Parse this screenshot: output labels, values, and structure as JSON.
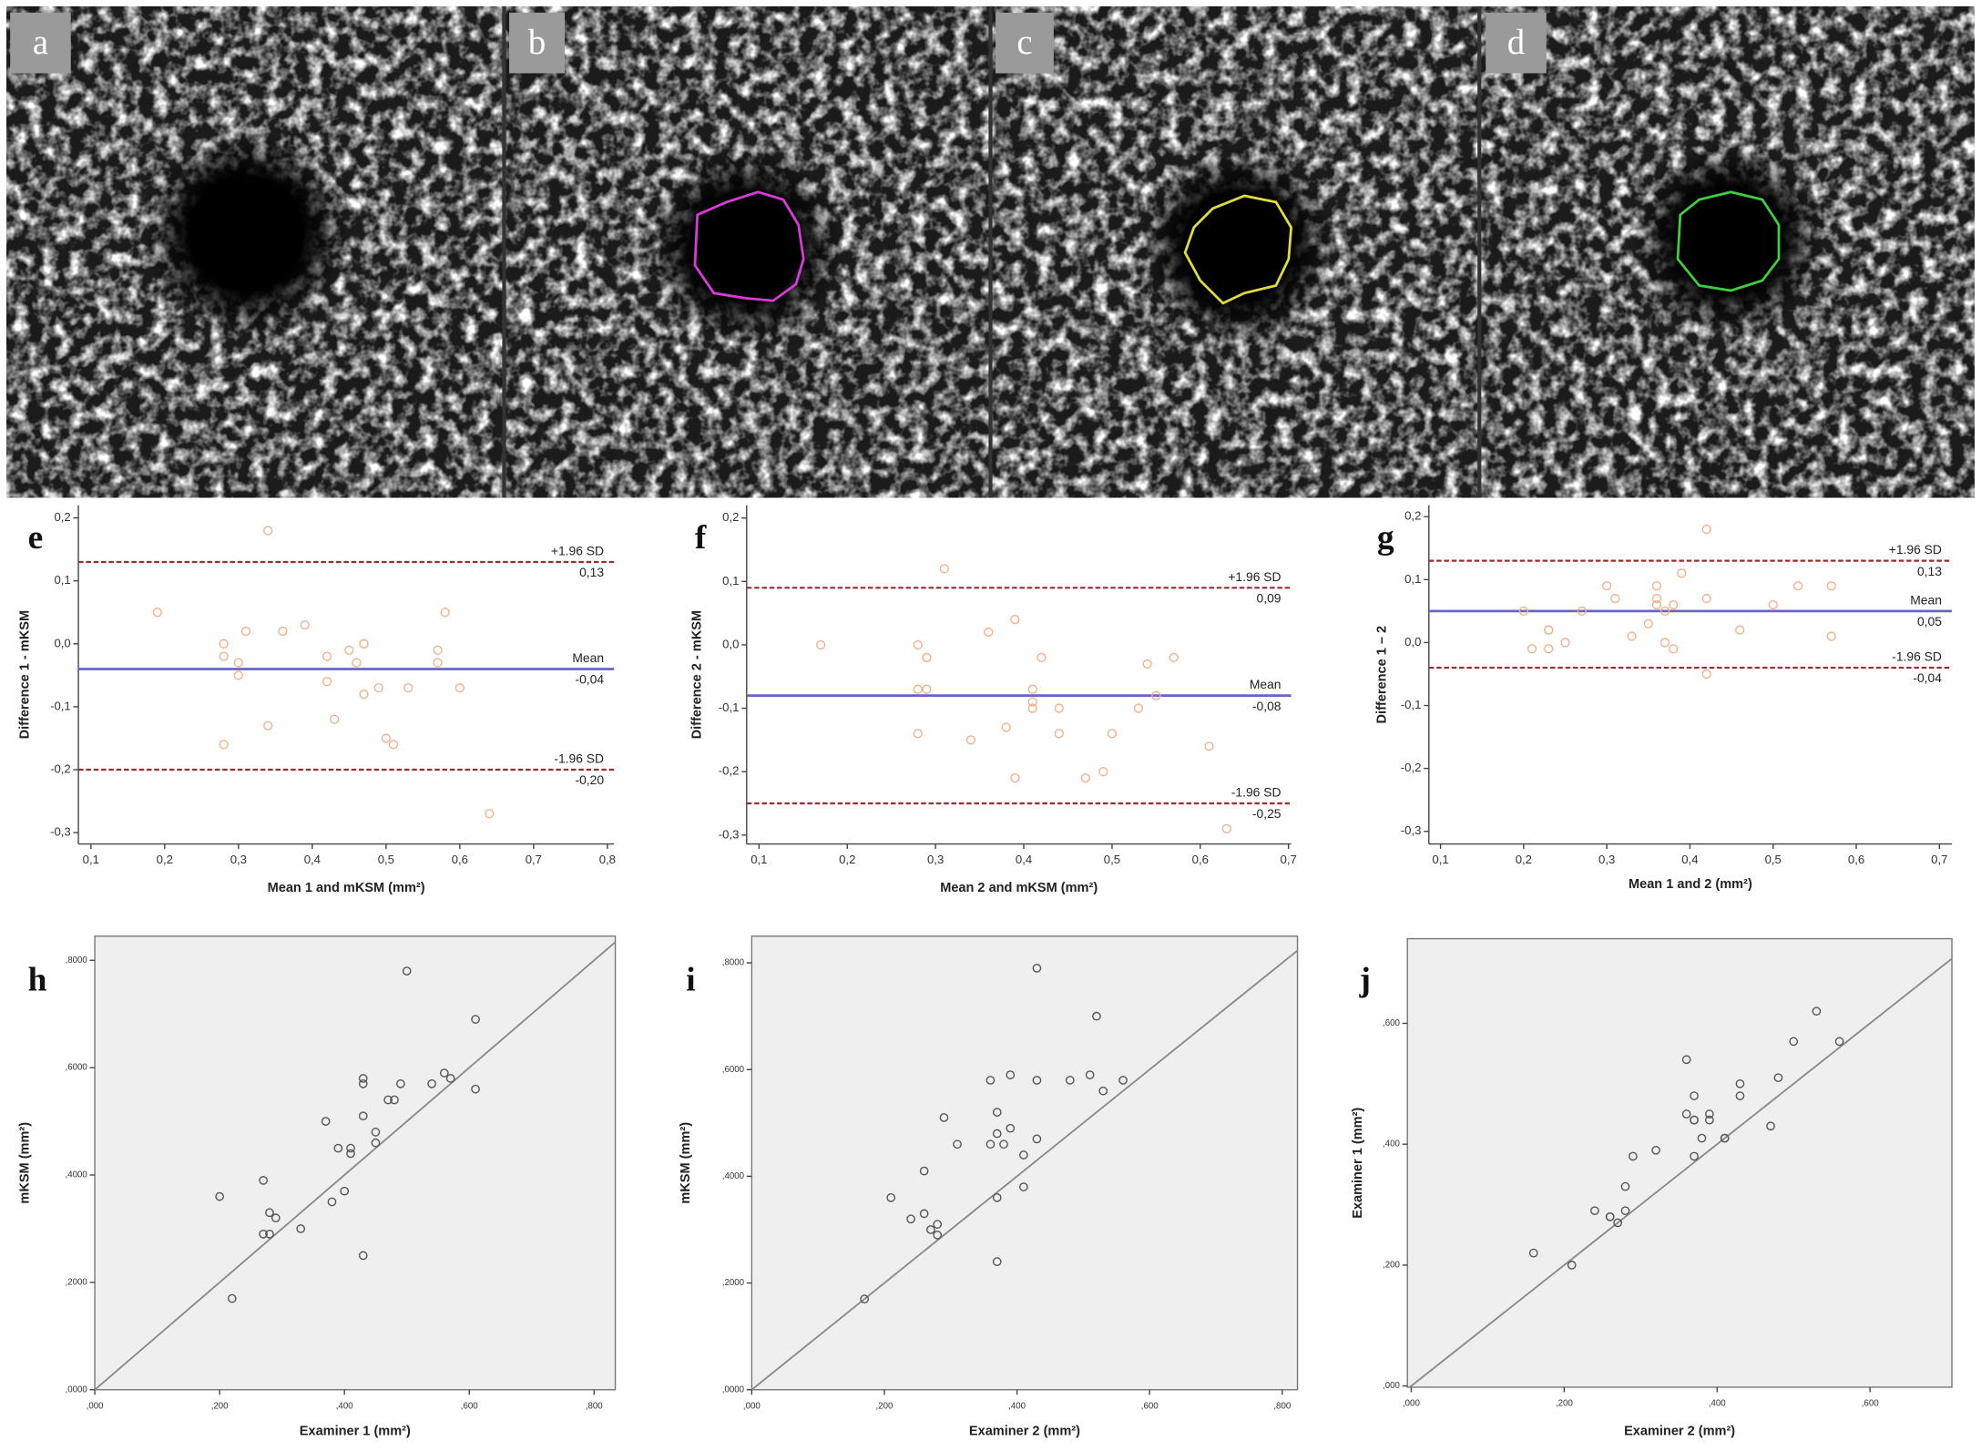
{
  "image_panels": [
    {
      "label": "a"
    },
    {
      "label": "b",
      "outline_color": "#d93ad9"
    },
    {
      "label": "c",
      "outline_color": "#e0dc3a"
    },
    {
      "label": "d",
      "outline_color": "#3fcf3a"
    }
  ],
  "chart_data": [
    {
      "type": "scatter",
      "label": "e",
      "x_label": "Mean 1 and mKSM (mm²)",
      "y_label": "Difference 1 - mKSM",
      "xlim": [
        0.083,
        0.809
      ],
      "ylim": [
        -0.318,
        0.22
      ],
      "xticks": [
        {
          "value": 0.1,
          "label": "0,1"
        },
        {
          "value": 0.2,
          "label": "0,2"
        },
        {
          "value": 0.3,
          "label": "0,3"
        },
        {
          "value": 0.4,
          "label": "0,4"
        },
        {
          "value": 0.5,
          "label": "0,5"
        },
        {
          "value": 0.6,
          "label": "0,6"
        },
        {
          "value": 0.7,
          "label": "0,7"
        },
        {
          "value": 0.8,
          "label": "0,8"
        }
      ],
      "yticks": [
        {
          "value": 0.2,
          "label": "0,2"
        },
        {
          "value": 0.1,
          "label": "0,1"
        },
        {
          "value": 0,
          "label": "0,0"
        },
        {
          "value": -0.1,
          "label": "-0,1"
        },
        {
          "value": -0.2,
          "label": "-0,2"
        },
        {
          "value": -0.3,
          "label": "-0,3"
        }
      ],
      "reference_lines": [
        {
          "name": "+1.96 SD",
          "value": 0.13,
          "value_label": "0,13",
          "color": "#9b2d2d",
          "style": "dashed"
        },
        {
          "name": "Mean",
          "value": -0.04,
          "value_label": "-0,04",
          "color": "#6a64c8",
          "style": "solid"
        },
        {
          "name": "-1.96 SD",
          "value": -0.2,
          "value_label": "-0,20",
          "color": "#9b2d2d",
          "style": "dashed"
        }
      ],
      "series": [
        {
          "color": "#f4b08a",
          "x": [
            0.19,
            0.34,
            0.28,
            0.28,
            0.3,
            0.3,
            0.31,
            0.28,
            0.34,
            0.36,
            0.39,
            0.42,
            0.42,
            0.45,
            0.43,
            0.46,
            0.47,
            0.47,
            0.47,
            0.49,
            0.5,
            0.51,
            0.53,
            0.57,
            0.57,
            0.58,
            0.6,
            0.64
          ],
          "values": [
            0.05,
            0.18,
            -0.02,
            0,
            -0.05,
            -0.03,
            0.02,
            -0.16,
            -0.13,
            0.02,
            0.03,
            -0.06,
            -0.02,
            -0.01,
            -0.12,
            -0.03,
            0,
            0,
            -0.08,
            -0.07,
            -0.15,
            -0.16,
            -0.07,
            -0.03,
            -0.01,
            0.05,
            -0.07,
            -0.27
          ]
        }
      ]
    },
    {
      "type": "scatter",
      "label": "f",
      "x_label": "Mean 2 and mKSM (mm²)",
      "y_label": "Difference 2 - mKSM",
      "xlim": [
        0.086,
        0.703
      ],
      "ylim": [
        -0.314,
        0.22
      ],
      "xticks": [
        {
          "value": 0.1,
          "label": "0,1"
        },
        {
          "value": 0.2,
          "label": "0,2"
        },
        {
          "value": 0.3,
          "label": "0,3"
        },
        {
          "value": 0.4,
          "label": "0,4"
        },
        {
          "value": 0.5,
          "label": "0,5"
        },
        {
          "value": 0.6,
          "label": "0,6"
        },
        {
          "value": 0.7,
          "label": "0,7"
        }
      ],
      "yticks": [
        {
          "value": 0.2,
          "label": "0,2"
        },
        {
          "value": 0.1,
          "label": "0,1"
        },
        {
          "value": 0,
          "label": "0,0"
        },
        {
          "value": -0.1,
          "label": "-0,1"
        },
        {
          "value": -0.2,
          "label": "-0,2"
        },
        {
          "value": -0.3,
          "label": "-0,3"
        }
      ],
      "reference_lines": [
        {
          "name": "+1.96 SD",
          "value": 0.09,
          "value_label": "0,09",
          "color": "#9b2d2d",
          "style": "dashed"
        },
        {
          "name": "Mean",
          "value": -0.08,
          "value_label": "-0,08",
          "color": "#6a64c8",
          "style": "solid"
        },
        {
          "name": "-1.96 SD",
          "value": -0.25,
          "value_label": "-0,25",
          "color": "#9b2d2d",
          "style": "dashed"
        }
      ],
      "series": [
        {
          "color": "#f4b08a",
          "x": [
            0.17,
            0.31,
            0.28,
            0.29,
            0.29,
            0.28,
            0.29,
            0.28,
            0.34,
            0.36,
            0.39,
            0.42,
            0.41,
            0.41,
            0.41,
            0.38,
            0.39,
            0.44,
            0.44,
            0.47,
            0.49,
            0.5,
            0.53,
            0.54,
            0.55,
            0.57,
            0.61,
            0.63
          ],
          "values": [
            0,
            0.12,
            0,
            -0.02,
            -0.02,
            -0.07,
            -0.07,
            -0.14,
            -0.15,
            0.02,
            0.04,
            -0.02,
            -0.09,
            -0.07,
            -0.1,
            -0.13,
            -0.21,
            -0.1,
            -0.14,
            -0.21,
            -0.2,
            -0.14,
            -0.1,
            -0.03,
            -0.08,
            -0.02,
            -0.16,
            -0.29
          ]
        }
      ]
    },
    {
      "type": "scatter",
      "label": "g",
      "x_label": "Mean 1 and 2 (mm²)",
      "y_label": "Difference 1 – 2",
      "xlim": [
        0.086,
        0.715
      ],
      "ylim": [
        -0.32,
        0.218
      ],
      "xticks": [
        {
          "value": 0.1,
          "label": "0,1"
        },
        {
          "value": 0.2,
          "label": "0,2"
        },
        {
          "value": 0.3,
          "label": "0,3"
        },
        {
          "value": 0.4,
          "label": "0,4"
        },
        {
          "value": 0.5,
          "label": "0,5"
        },
        {
          "value": 0.6,
          "label": "0,6"
        },
        {
          "value": 0.7,
          "label": "0,7"
        }
      ],
      "yticks": [
        {
          "value": 0.2,
          "label": "0,2"
        },
        {
          "value": 0.1,
          "label": "0,1"
        },
        {
          "value": 0,
          "label": "0,0"
        },
        {
          "value": -0.1,
          "label": "-0,1"
        },
        {
          "value": -0.2,
          "label": "-0,2"
        },
        {
          "value": -0.3,
          "label": "-0,3"
        }
      ],
      "reference_lines": [
        {
          "name": "+1.96 SD",
          "value": 0.13,
          "value_label": "0,13",
          "color": "#9b2d2d",
          "style": "dashed"
        },
        {
          "name": "Mean",
          "value": 0.05,
          "value_label": "0,05",
          "color": "#6a64c8",
          "style": "solid"
        },
        {
          "name": "-1.96 SD",
          "value": -0.04,
          "value_label": "-0,04",
          "color": "#9b2d2d",
          "style": "dashed"
        }
      ],
      "series": [
        {
          "color": "#f4b08a",
          "x": [
            0.2,
            0.21,
            0.23,
            0.23,
            0.23,
            0.25,
            0.27,
            0.3,
            0.31,
            0.33,
            0.35,
            0.36,
            0.36,
            0.36,
            0.37,
            0.37,
            0.38,
            0.39,
            0.38,
            0.42,
            0.42,
            0.42,
            0.46,
            0.5,
            0.53,
            0.57,
            0.57
          ],
          "values": [
            0.05,
            -0.01,
            0.02,
            0.02,
            -0.01,
            0,
            0.05,
            0.09,
            0.07,
            0.01,
            0.03,
            0.09,
            0.07,
            0.06,
            0.05,
            0,
            -0.01,
            0.11,
            0.06,
            0.18,
            -0.05,
            0.07,
            0.02,
            0.06,
            0.09,
            0.01,
            0.09
          ]
        }
      ]
    },
    {
      "type": "scatter",
      "label": "h",
      "x_label": "Examiner 1 (mm²)",
      "y_label": "mKSM (mm²)",
      "identity_line": true,
      "background": "#efefef",
      "xlim": [
        0,
        0.834
      ],
      "ylim": [
        0,
        0.845
      ],
      "xticks": [
        {
          "value": 0,
          "label": ",000"
        },
        {
          "value": 0.2,
          "label": ",200"
        },
        {
          "value": 0.4,
          "label": ",400"
        },
        {
          "value": 0.6,
          "label": ",600"
        },
        {
          "value": 0.8,
          "label": ",800"
        }
      ],
      "yticks": [
        {
          "value": 0,
          "label": ",0000"
        },
        {
          "value": 0.2,
          "label": ",2000"
        },
        {
          "value": 0.4,
          "label": ",4000"
        },
        {
          "value": 0.6,
          "label": ",6000"
        },
        {
          "value": 0.8,
          "label": ",8000"
        }
      ],
      "series": [
        {
          "color": "#555555",
          "x": [
            0.2,
            0.22,
            0.27,
            0.28,
            0.29,
            0.28,
            0.27,
            0.33,
            0.37,
            0.38,
            0.39,
            0.41,
            0.41,
            0.4,
            0.43,
            0.43,
            0.49,
            0.43,
            0.45,
            0.45,
            0.47,
            0.48,
            0.5,
            0.54,
            0.56,
            0.57,
            0.61,
            0.61,
            0.43
          ],
          "values": [
            0.36,
            0.17,
            0.39,
            0.33,
            0.32,
            0.29,
            0.29,
            0.3,
            0.5,
            0.35,
            0.45,
            0.45,
            0.44,
            0.37,
            0.58,
            0.57,
            0.57,
            0.51,
            0.48,
            0.46,
            0.54,
            0.54,
            0.78,
            0.57,
            0.59,
            0.58,
            0.69,
            0.56,
            0.25
          ]
        }
      ]
    },
    {
      "type": "scatter",
      "label": "i",
      "x_label": "Examiner 2 (mm²)",
      "y_label": "mKSM (mm²)",
      "identity_line": true,
      "background": "#efefef",
      "xlim": [
        0,
        0.823
      ],
      "ylim": [
        0,
        0.85
      ],
      "xticks": [
        {
          "value": 0,
          "label": ",000"
        },
        {
          "value": 0.2,
          "label": ",200"
        },
        {
          "value": 0.4,
          "label": ",400"
        },
        {
          "value": 0.6,
          "label": ",600"
        },
        {
          "value": 0.8,
          "label": ",800"
        }
      ],
      "yticks": [
        {
          "value": 0,
          "label": ",0000"
        },
        {
          "value": 0.2,
          "label": ",2000"
        },
        {
          "value": 0.4,
          "label": ",4000"
        },
        {
          "value": 0.6,
          "label": ",6000"
        },
        {
          "value": 0.8,
          "label": ",8000"
        }
      ],
      "series": [
        {
          "color": "#555555",
          "x": [
            0.17,
            0.21,
            0.24,
            0.26,
            0.26,
            0.27,
            0.28,
            0.28,
            0.29,
            0.31,
            0.36,
            0.36,
            0.37,
            0.37,
            0.37,
            0.37,
            0.38,
            0.39,
            0.39,
            0.41,
            0.41,
            0.43,
            0.43,
            0.43,
            0.48,
            0.51,
            0.52,
            0.53,
            0.56
          ],
          "values": [
            0.17,
            0.36,
            0.32,
            0.33,
            0.41,
            0.3,
            0.31,
            0.29,
            0.51,
            0.46,
            0.58,
            0.46,
            0.48,
            0.52,
            0.24,
            0.36,
            0.46,
            0.59,
            0.49,
            0.44,
            0.38,
            0.58,
            0.47,
            0.79,
            0.58,
            0.59,
            0.7,
            0.56,
            0.58
          ]
        }
      ]
    },
    {
      "type": "scatter",
      "label": "j",
      "x_label": "Examiner 2 (mm²)",
      "y_label": "Examiner 1 (mm²)",
      "identity_line": true,
      "background": "#efefef",
      "xlim": [
        -0.005,
        0.707
      ],
      "ylim": [
        -0.002,
        0.74
      ],
      "xticks": [
        {
          "value": 0,
          "label": ",000"
        },
        {
          "value": 0.2,
          "label": ",200"
        },
        {
          "value": 0.4,
          "label": ",400"
        },
        {
          "value": 0.6,
          "label": ",600"
        }
      ],
      "yticks": [
        {
          "value": 0,
          "label": ",000"
        },
        {
          "value": 0.2,
          "label": ",200"
        },
        {
          "value": 0.4,
          "label": ",400"
        },
        {
          "value": 0.6,
          "label": ",600"
        }
      ],
      "series": [
        {
          "color": "#555555",
          "x": [
            0.16,
            0.21,
            0.24,
            0.26,
            0.26,
            0.27,
            0.28,
            0.28,
            0.29,
            0.32,
            0.36,
            0.36,
            0.37,
            0.37,
            0.37,
            0.37,
            0.38,
            0.39,
            0.39,
            0.41,
            0.41,
            0.43,
            0.43,
            0.47,
            0.48,
            0.5,
            0.53,
            0.56
          ],
          "values": [
            0.22,
            0.2,
            0.29,
            0.28,
            0.28,
            0.27,
            0.29,
            0.33,
            0.38,
            0.39,
            0.54,
            0.45,
            0.48,
            0.44,
            0.44,
            0.38,
            0.41,
            0.44,
            0.45,
            0.41,
            0.41,
            0.5,
            0.48,
            0.43,
            0.51,
            0.57,
            0.62,
            0.57
          ]
        }
      ]
    }
  ]
}
